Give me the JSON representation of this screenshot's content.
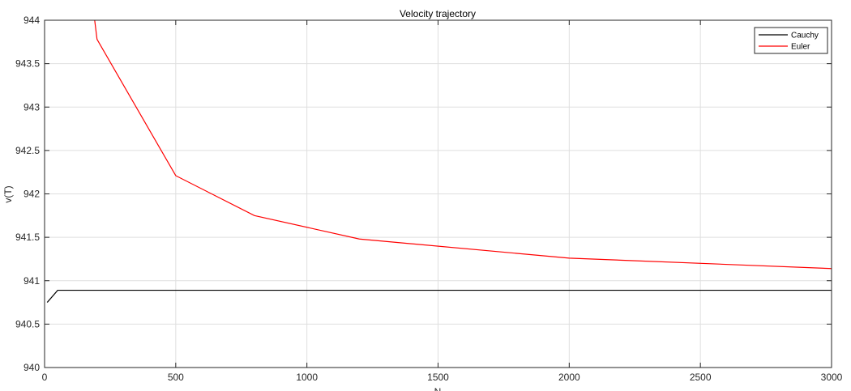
{
  "chart_data": {
    "type": "line",
    "title": "Velocity trajectory",
    "xlabel": "N",
    "ylabel": "v(T)",
    "xlim": [
      0,
      3000
    ],
    "ylim": [
      940,
      944
    ],
    "xticks": [
      0,
      500,
      1000,
      1500,
      2000,
      2500,
      3000
    ],
    "yticks": [
      940,
      940.5,
      941,
      941.5,
      942,
      942.5,
      943,
      943.5,
      944
    ],
    "xtick_labels": [
      "0",
      "500",
      "1000",
      "1500",
      "2000",
      "2500",
      "3000"
    ],
    "ytick_labels": [
      "940",
      "940.5",
      "941",
      "941.5",
      "942",
      "942.5",
      "943",
      "943.5",
      "944"
    ],
    "grid": true,
    "legend": "top-right",
    "series": [
      {
        "name": "Cauchy",
        "color": "#000000",
        "x": [
          10,
          50,
          100,
          200,
          500,
          800,
          1200,
          2000,
          3000
        ],
        "y": [
          940.75,
          940.89,
          940.89,
          940.89,
          940.89,
          940.89,
          940.89,
          940.89,
          940.89
        ]
      },
      {
        "name": "Euler",
        "color": "#ff0000",
        "x": [
          150,
          200,
          500,
          800,
          1200,
          2000,
          3000
        ],
        "y": [
          945.0,
          943.78,
          942.21,
          941.75,
          941.48,
          941.26,
          941.14
        ]
      }
    ]
  }
}
